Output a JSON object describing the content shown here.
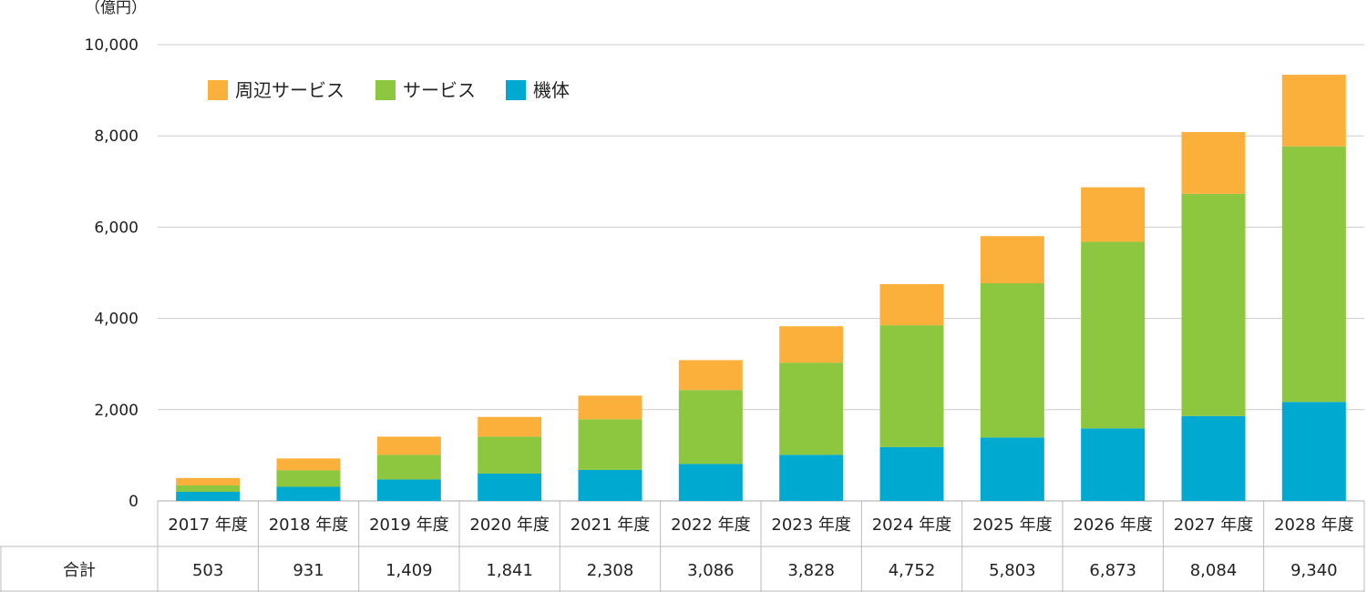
{
  "chart_data": {
    "type": "bar",
    "stacked": true,
    "unit_label": "（億円）",
    "categories": [
      "2017 年度",
      "2018 年度",
      "2019 年度",
      "2020 年度",
      "2021 年度",
      "2022 年度",
      "2023 年度",
      "2024 年度",
      "2025 年度",
      "2026 年度",
      "2027 年度",
      "2028 年度"
    ],
    "series": [
      {
        "name": "機体",
        "color": "#00a9d0",
        "values": [
          200,
          310,
          470,
          600,
          680,
          810,
          1010,
          1180,
          1390,
          1590,
          1860,
          2170
        ]
      },
      {
        "name": "サービス",
        "color": "#8dc63f",
        "values": [
          140,
          360,
          540,
          810,
          1110,
          1620,
          2020,
          2670,
          3380,
          4090,
          4870,
          5600
        ]
      },
      {
        "name": "周辺サービス",
        "color": "#fbb03b",
        "values": [
          163,
          261,
          399,
          431,
          518,
          656,
          798,
          902,
          1033,
          1193,
          1354,
          1570
        ]
      }
    ],
    "legend_order": [
      "周辺サービス",
      "サービス",
      "機体"
    ],
    "legend_position": "top-left",
    "ylim": [
      0,
      10000
    ],
    "yticks": [
      "0",
      "2,000",
      "4,000",
      "6,000",
      "8,000",
      "10,000"
    ],
    "yticks_values": [
      0,
      2000,
      4000,
      6000,
      8000,
      10000
    ],
    "grid": true,
    "table": {
      "row_label": "合計",
      "totals": [
        "503",
        "931",
        "1,409",
        "1,841",
        "2,308",
        "3,086",
        "3,828",
        "4,752",
        "5,803",
        "6,873",
        "8,084",
        "9,340"
      ]
    }
  }
}
